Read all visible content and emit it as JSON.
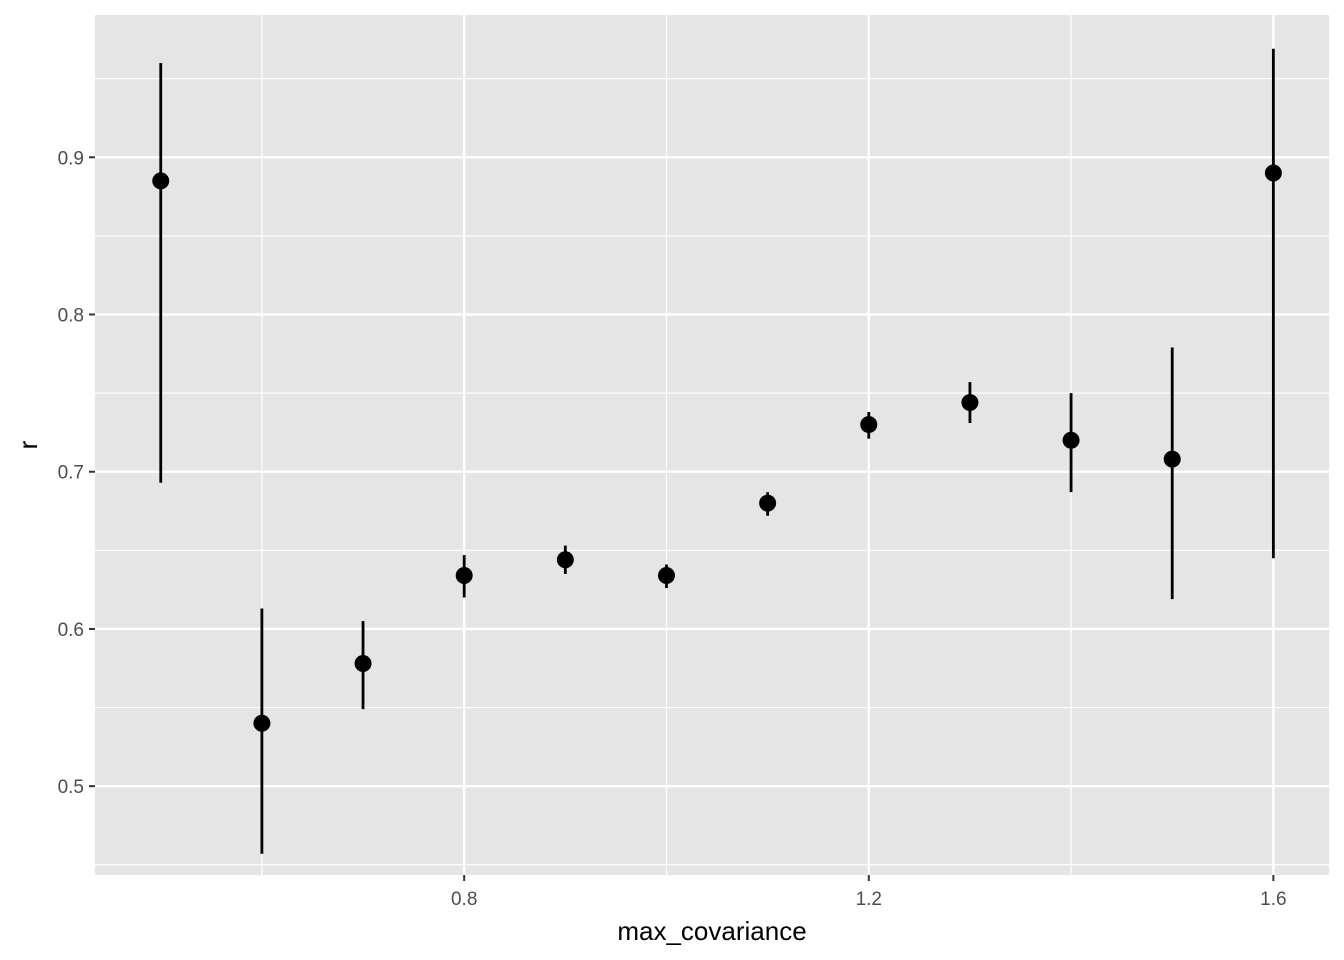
{
  "chart_data": {
    "type": "scatter",
    "title": "",
    "xlabel": "max_covariance",
    "ylabel": "r",
    "xlim": [
      0.435,
      1.655
    ],
    "ylim": [
      0.4435,
      0.9905
    ],
    "x_ticks": [
      0.8,
      1.2,
      1.6
    ],
    "x_tick_labels": [
      "0.8",
      "1.2",
      "1.6"
    ],
    "x_minor_ticks": [
      0.6,
      1.0,
      1.4
    ],
    "y_ticks": [
      0.5,
      0.6,
      0.7,
      0.8,
      0.9
    ],
    "y_tick_labels": [
      "0.5",
      "0.6",
      "0.7",
      "0.8",
      "0.9"
    ],
    "y_minor_ticks": [
      0.45,
      0.55,
      0.65,
      0.75,
      0.85,
      0.95
    ],
    "grid": true,
    "legend": "none",
    "series": [
      {
        "points": [
          {
            "x": 0.5,
            "y": 0.885,
            "ymin": 0.693,
            "ymax": 0.96
          },
          {
            "x": 0.6,
            "y": 0.54,
            "ymin": 0.457,
            "ymax": 0.613
          },
          {
            "x": 0.7,
            "y": 0.578,
            "ymin": 0.549,
            "ymax": 0.605
          },
          {
            "x": 0.8,
            "y": 0.634,
            "ymin": 0.62,
            "ymax": 0.647
          },
          {
            "x": 0.9,
            "y": 0.644,
            "ymin": 0.635,
            "ymax": 0.653
          },
          {
            "x": 1.0,
            "y": 0.634,
            "ymin": 0.626,
            "ymax": 0.641
          },
          {
            "x": 1.1,
            "y": 0.68,
            "ymin": 0.672,
            "ymax": 0.687
          },
          {
            "x": 1.2,
            "y": 0.73,
            "ymin": 0.721,
            "ymax": 0.738
          },
          {
            "x": 1.3,
            "y": 0.744,
            "ymin": 0.731,
            "ymax": 0.757
          },
          {
            "x": 1.4,
            "y": 0.72,
            "ymin": 0.687,
            "ymax": 0.75
          },
          {
            "x": 1.5,
            "y": 0.708,
            "ymin": 0.619,
            "ymax": 0.779
          },
          {
            "x": 1.6,
            "y": 0.89,
            "ymin": 0.645,
            "ymax": 0.969
          }
        ]
      }
    ],
    "colors": {
      "panel_background": "#e5e5e5",
      "grid": "#ffffff",
      "points": "#000000",
      "tick_text": "#4d4d4d",
      "tick_marks": "#333333"
    }
  }
}
